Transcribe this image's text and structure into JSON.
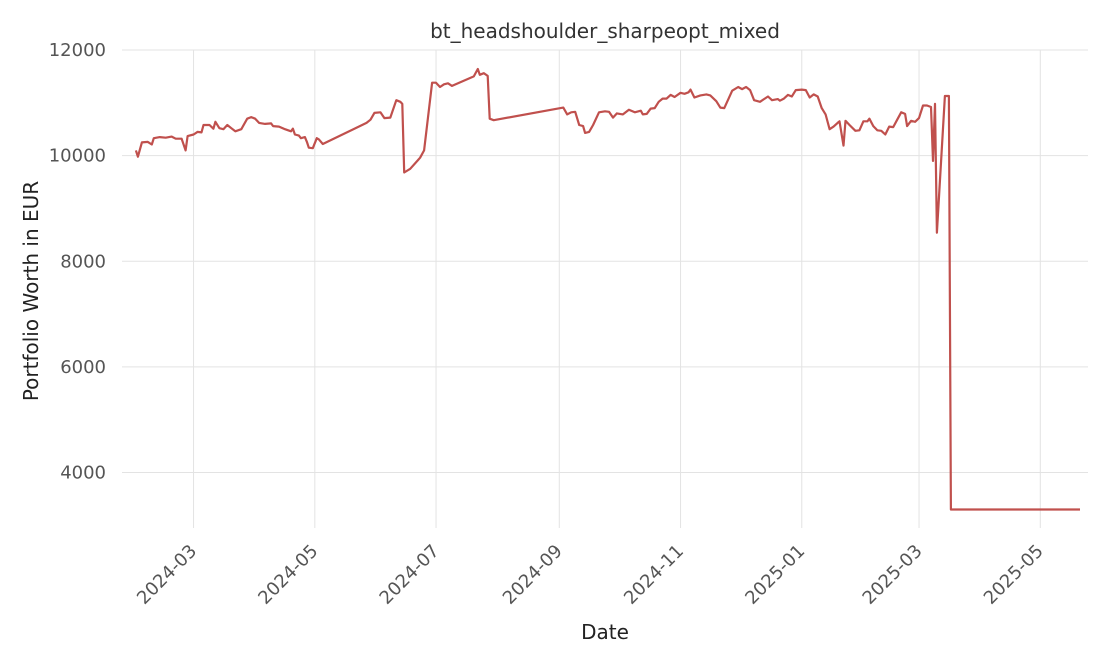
{
  "chart_data": {
    "type": "line",
    "title": "bt_headshoulder_sharpeopt_mixed",
    "xlabel": "Date",
    "ylabel": "Portfolio Worth in EUR",
    "x_ticks": [
      "2024-03",
      "2024-05",
      "2024-07",
      "2024-09",
      "2024-11",
      "2025-01",
      "2025-03",
      "2025-05"
    ],
    "y_ticks": [
      4000,
      6000,
      8000,
      10000,
      12000
    ],
    "xlim": [
      "2024-01-25",
      "2025-05-25"
    ],
    "ylim": [
      2950,
      12000
    ],
    "grid": true,
    "colors": {
      "series": "#c0504d"
    },
    "series": [
      {
        "points": [
          [
            "2024-02-01",
            10100
          ],
          [
            "2024-02-02",
            9980
          ],
          [
            "2024-02-04",
            10250
          ],
          [
            "2024-02-07",
            10260
          ],
          [
            "2024-02-09",
            10210
          ],
          [
            "2024-02-10",
            10330
          ],
          [
            "2024-02-13",
            10350
          ],
          [
            "2024-02-16",
            10340
          ],
          [
            "2024-02-19",
            10360
          ],
          [
            "2024-02-21",
            10320
          ],
          [
            "2024-02-24",
            10320
          ],
          [
            "2024-02-26",
            10100
          ],
          [
            "2024-02-27",
            10370
          ],
          [
            "2024-03-01",
            10400
          ],
          [
            "2024-03-03",
            10450
          ],
          [
            "2024-03-05",
            10440
          ],
          [
            "2024-03-06",
            10580
          ],
          [
            "2024-03-09",
            10580
          ],
          [
            "2024-03-11",
            10510
          ],
          [
            "2024-03-12",
            10640
          ],
          [
            "2024-03-14",
            10520
          ],
          [
            "2024-03-16",
            10500
          ],
          [
            "2024-03-18",
            10580
          ],
          [
            "2024-03-20",
            10520
          ],
          [
            "2024-03-22",
            10460
          ],
          [
            "2024-03-25",
            10500
          ],
          [
            "2024-03-28",
            10700
          ],
          [
            "2024-03-30",
            10730
          ],
          [
            "2024-04-01",
            10700
          ],
          [
            "2024-04-03",
            10620
          ],
          [
            "2024-04-06",
            10600
          ],
          [
            "2024-04-09",
            10610
          ],
          [
            "2024-04-10",
            10560
          ],
          [
            "2024-04-13",
            10550
          ],
          [
            "2024-04-16",
            10500
          ],
          [
            "2024-04-19",
            10460
          ],
          [
            "2024-04-20",
            10510
          ],
          [
            "2024-04-21",
            10400
          ],
          [
            "2024-04-23",
            10380
          ],
          [
            "2024-04-24",
            10330
          ],
          [
            "2024-04-26",
            10350
          ],
          [
            "2024-04-27",
            10260
          ],
          [
            "2024-04-28",
            10150
          ],
          [
            "2024-04-30",
            10140
          ],
          [
            "2024-05-02",
            10330
          ],
          [
            "2024-05-03",
            10310
          ],
          [
            "2024-05-05",
            10220
          ],
          [
            "2024-05-27",
            10620
          ],
          [
            "2024-05-29",
            10680
          ],
          [
            "2024-05-31",
            10810
          ],
          [
            "2024-06-03",
            10820
          ],
          [
            "2024-06-05",
            10710
          ],
          [
            "2024-06-08",
            10720
          ],
          [
            "2024-06-11",
            11050
          ],
          [
            "2024-06-13",
            11020
          ],
          [
            "2024-06-14",
            10980
          ],
          [
            "2024-06-15",
            9680
          ],
          [
            "2024-06-18",
            9750
          ],
          [
            "2024-06-22",
            9920
          ],
          [
            "2024-06-23",
            9960
          ],
          [
            "2024-06-25",
            10100
          ],
          [
            "2024-06-29",
            11380
          ],
          [
            "2024-07-01",
            11380
          ],
          [
            "2024-07-03",
            11300
          ],
          [
            "2024-07-05",
            11350
          ],
          [
            "2024-07-07",
            11370
          ],
          [
            "2024-07-09",
            11320
          ],
          [
            "2024-07-20",
            11500
          ],
          [
            "2024-07-22",
            11640
          ],
          [
            "2024-07-23",
            11530
          ],
          [
            "2024-07-25",
            11560
          ],
          [
            "2024-07-27",
            11510
          ],
          [
            "2024-07-28",
            10700
          ],
          [
            "2024-07-30",
            10670
          ],
          [
            "2024-09-03",
            10910
          ],
          [
            "2024-09-05",
            10780
          ],
          [
            "2024-09-07",
            10820
          ],
          [
            "2024-09-09",
            10830
          ],
          [
            "2024-09-11",
            10580
          ],
          [
            "2024-09-13",
            10560
          ],
          [
            "2024-09-14",
            10430
          ],
          [
            "2024-09-16",
            10450
          ],
          [
            "2024-09-18",
            10580
          ],
          [
            "2024-09-21",
            10820
          ],
          [
            "2024-09-24",
            10840
          ],
          [
            "2024-09-26",
            10830
          ],
          [
            "2024-09-28",
            10720
          ],
          [
            "2024-09-30",
            10800
          ],
          [
            "2024-10-03",
            10780
          ],
          [
            "2024-10-06",
            10870
          ],
          [
            "2024-10-09",
            10820
          ],
          [
            "2024-10-12",
            10850
          ],
          [
            "2024-10-13",
            10780
          ],
          [
            "2024-10-15",
            10790
          ],
          [
            "2024-10-17",
            10890
          ],
          [
            "2024-10-19",
            10900
          ],
          [
            "2024-10-21",
            11020
          ],
          [
            "2024-10-23",
            11080
          ],
          [
            "2024-10-25",
            11080
          ],
          [
            "2024-10-27",
            11150
          ],
          [
            "2024-10-29",
            11110
          ],
          [
            "2024-11-01",
            11190
          ],
          [
            "2024-11-03",
            11170
          ],
          [
            "2024-11-05",
            11200
          ],
          [
            "2024-11-06",
            11250
          ],
          [
            "2024-11-08",
            11100
          ],
          [
            "2024-11-11",
            11140
          ],
          [
            "2024-11-14",
            11160
          ],
          [
            "2024-11-16",
            11140
          ],
          [
            "2024-11-19",
            11030
          ],
          [
            "2024-11-21",
            10910
          ],
          [
            "2024-11-23",
            10900
          ],
          [
            "2024-11-27",
            11230
          ],
          [
            "2024-11-30",
            11300
          ],
          [
            "2024-12-02",
            11260
          ],
          [
            "2024-12-04",
            11300
          ],
          [
            "2024-12-06",
            11240
          ],
          [
            "2024-12-08",
            11050
          ],
          [
            "2024-12-11",
            11020
          ],
          [
            "2024-12-13",
            11070
          ],
          [
            "2024-12-15",
            11120
          ],
          [
            "2024-12-17",
            11050
          ],
          [
            "2024-12-20",
            11070
          ],
          [
            "2024-12-21",
            11040
          ],
          [
            "2024-12-23",
            11080
          ],
          [
            "2024-12-25",
            11150
          ],
          [
            "2024-12-27",
            11120
          ],
          [
            "2024-12-29",
            11240
          ],
          [
            "2025-01-01",
            11250
          ],
          [
            "2025-01-03",
            11240
          ],
          [
            "2025-01-05",
            11100
          ],
          [
            "2025-01-07",
            11160
          ],
          [
            "2025-01-09",
            11120
          ],
          [
            "2025-01-11",
            10900
          ],
          [
            "2025-01-13",
            10780
          ],
          [
            "2025-01-15",
            10500
          ],
          [
            "2025-01-17",
            10550
          ],
          [
            "2025-01-19",
            10620
          ],
          [
            "2025-01-20",
            10650
          ],
          [
            "2025-01-22",
            10190
          ],
          [
            "2025-01-23",
            10660
          ],
          [
            "2025-01-25",
            10580
          ],
          [
            "2025-01-28",
            10470
          ],
          [
            "2025-01-30",
            10480
          ],
          [
            "2025-02-01",
            10650
          ],
          [
            "2025-02-03",
            10650
          ],
          [
            "2025-02-04",
            10700
          ],
          [
            "2025-02-06",
            10560
          ],
          [
            "2025-02-08",
            10480
          ],
          [
            "2025-02-10",
            10470
          ],
          [
            "2025-02-12",
            10400
          ],
          [
            "2025-02-14",
            10550
          ],
          [
            "2025-02-16",
            10540
          ],
          [
            "2025-02-18",
            10680
          ],
          [
            "2025-02-20",
            10820
          ],
          [
            "2025-02-22",
            10790
          ],
          [
            "2025-02-23",
            10560
          ],
          [
            "2025-02-25",
            10660
          ],
          [
            "2025-02-27",
            10640
          ],
          [
            "2025-03-01",
            10710
          ],
          [
            "2025-03-03",
            10950
          ],
          [
            "2025-03-05",
            10950
          ],
          [
            "2025-03-07",
            10920
          ],
          [
            "2025-03-08",
            9900
          ],
          [
            "2025-03-09",
            10980
          ],
          [
            "2025-03-10",
            8540
          ],
          [
            "2025-03-14",
            11130
          ],
          [
            "2025-03-15",
            11130
          ],
          [
            "2025-03-16",
            11130
          ],
          [
            "2025-03-17",
            3300
          ],
          [
            "2025-05-21",
            3300
          ]
        ]
      }
    ]
  }
}
